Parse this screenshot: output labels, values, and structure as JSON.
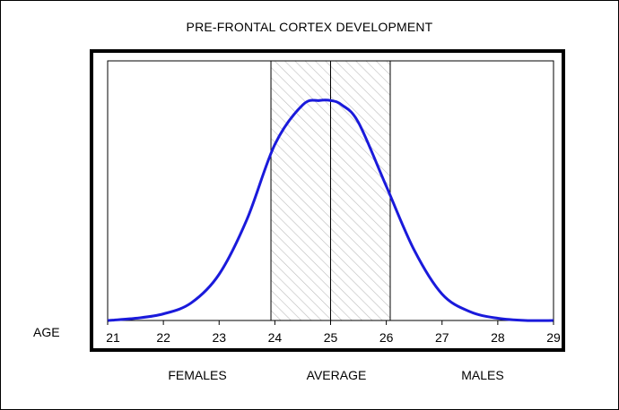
{
  "chart_data": {
    "type": "line",
    "title": "PRE-FRONTAL CORTEX DEVELOPMENT",
    "ylabel_left": "AGE",
    "xlim": [
      21,
      29
    ],
    "ticks": [
      "21",
      "22",
      "23",
      "24",
      "25",
      "26",
      "27",
      "28",
      "29"
    ],
    "tick_values": [
      21,
      22,
      23,
      24,
      25,
      26,
      27,
      28,
      29
    ],
    "shaded_band": {
      "from": 23.93,
      "to": 26.07,
      "pattern": "diagonal-hatch"
    },
    "vertical_lines": [
      23.93,
      25,
      26.07
    ],
    "series": [
      {
        "color": "#1a1adb",
        "x": [
          21,
          21.5,
          22,
          22.5,
          23,
          23.5,
          24,
          24.5,
          24.8,
          25,
          25.2,
          25.5,
          26,
          26.5,
          27,
          27.5,
          28,
          28.5,
          29
        ],
        "y": [
          0.0,
          0.01,
          0.03,
          0.08,
          0.21,
          0.46,
          0.8,
          0.98,
          1.0,
          1.0,
          0.98,
          0.9,
          0.61,
          0.32,
          0.12,
          0.04,
          0.01,
          0.0,
          0.0
        ]
      }
    ],
    "ylim": [
      0,
      1.18
    ],
    "grid": false
  },
  "labels": {
    "age": "AGE",
    "females": "FEMALES",
    "average": "AVERAGE",
    "males": "MALES"
  },
  "colors": {
    "curve": "#1a1adb",
    "hatch": "#bdbdbd",
    "frame": "#000000"
  }
}
